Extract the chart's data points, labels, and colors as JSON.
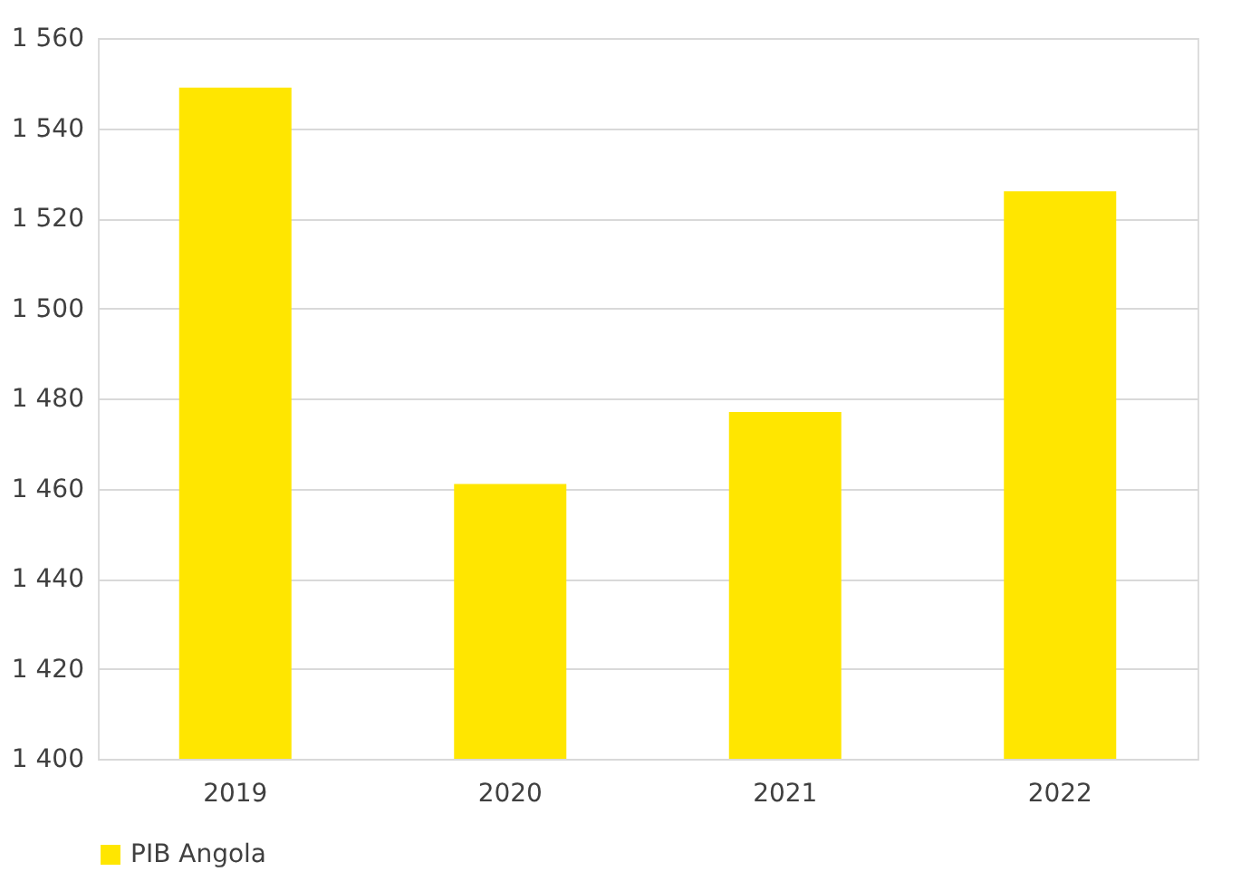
{
  "chart_data": {
    "type": "bar",
    "categories": [
      "2019",
      "2020",
      "2021",
      "2022"
    ],
    "series": [
      {
        "name": "PIB Angola",
        "color": "#ffe600",
        "values": [
          1549,
          1461,
          1477,
          1526
        ]
      }
    ],
    "ylim": [
      1400,
      1560
    ],
    "yticks": [
      {
        "value": 1400,
        "label": "1 400"
      },
      {
        "value": 1420,
        "label": "1 420"
      },
      {
        "value": 1440,
        "label": "1 440"
      },
      {
        "value": 1460,
        "label": "1 460"
      },
      {
        "value": 1480,
        "label": "1 480"
      },
      {
        "value": 1500,
        "label": "1 500"
      },
      {
        "value": 1520,
        "label": "1 520"
      },
      {
        "value": 1540,
        "label": "1 540"
      },
      {
        "value": 1560,
        "label": "1 560"
      }
    ],
    "grid": "y",
    "legend": "bottom"
  }
}
